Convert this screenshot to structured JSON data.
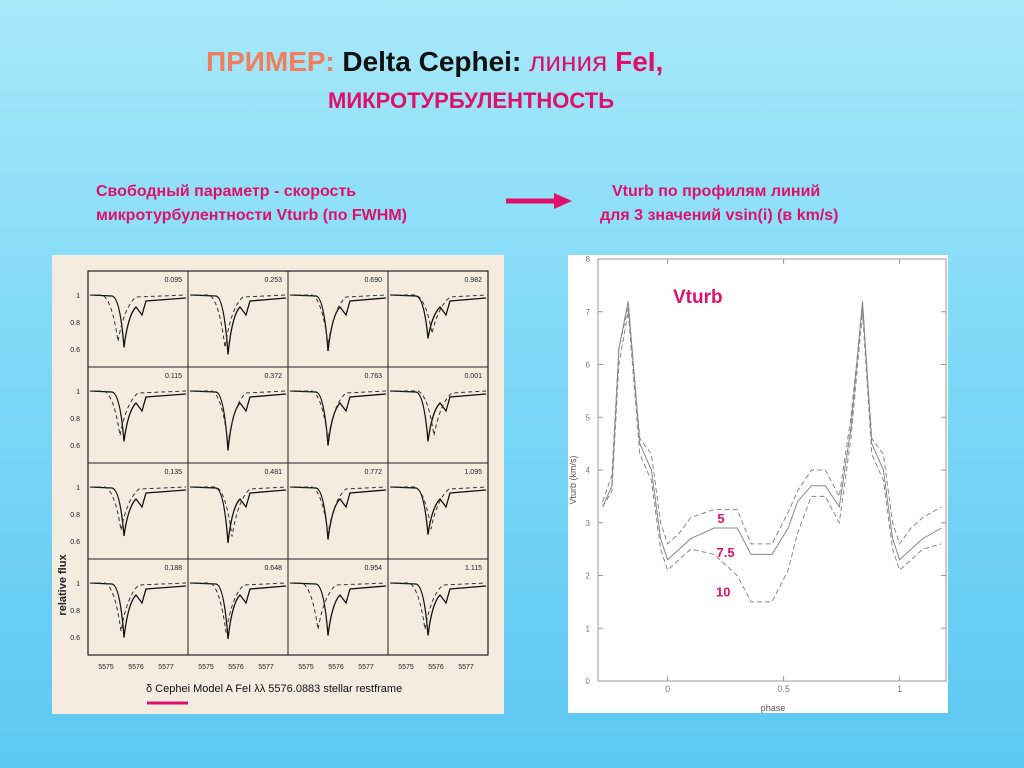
{
  "title": {
    "part1": "ПРИМЕР:",
    "part2": "Delta Cephei:",
    "part3": "линия",
    "part4": "FeI,",
    "line2": "МИКРОТУРБУЛЕНТНОСТЬ"
  },
  "left_text": {
    "line1": "Свободный параметр - скорость",
    "line2": "микротурбулентности Vturb (по FWHM)"
  },
  "right_text": {
    "line1": "Vturb по профилям линий",
    "line2": "для 3  значений  vsin(i) (в km/s)"
  },
  "left_figure": {
    "ylabel": "relative flux",
    "yticks": [
      "1",
      "0.8",
      "0.6"
    ],
    "phases": [
      [
        "0.095",
        "0.253",
        "0.690",
        "0.982"
      ],
      [
        "0.115",
        "0.372",
        "0.763",
        "0.001"
      ],
      [
        "0.135",
        "0.481",
        "0.772",
        "1.095"
      ],
      [
        "0.188",
        "0.648",
        "0.954",
        "1.115"
      ]
    ],
    "xticks": [
      "5575",
      "5576",
      "5577"
    ],
    "caption": "δ Cephei Model A  FeI λλ 5576.0883   stellar restframe"
  },
  "chart_data": {
    "type": "line",
    "title": "Vturb",
    "xlabel": "phase",
    "ylabel": "Vturb (km/s)",
    "xlim": [
      -0.3,
      1.2
    ],
    "ylim": [
      0,
      8
    ],
    "xticks": [
      "0",
      "0.5",
      "1"
    ],
    "yticks": [
      "0",
      "1",
      "2",
      "3",
      "4",
      "5",
      "6",
      "7",
      "8"
    ],
    "series": [
      {
        "name": "5",
        "style": "dashed",
        "x": [
          -0.28,
          -0.24,
          -0.21,
          -0.17,
          -0.12,
          -0.07,
          -0.03,
          0.0,
          0.05,
          0.1,
          0.2,
          0.3,
          0.36,
          0.45,
          0.52,
          0.56,
          0.62,
          0.68,
          0.74,
          0.79,
          0.84,
          0.88,
          0.93,
          0.97,
          1.0,
          1.05,
          1.1,
          1.18
        ],
        "y": [
          3.4,
          3.9,
          6.3,
          7.1,
          4.6,
          4.3,
          3.0,
          2.6,
          2.8,
          3.1,
          3.25,
          3.25,
          2.6,
          2.6,
          3.2,
          3.6,
          4.0,
          4.0,
          3.5,
          5.0,
          7.1,
          4.6,
          4.3,
          3.0,
          2.6,
          2.9,
          3.1,
          3.3
        ]
      },
      {
        "name": "7.5",
        "style": "solid",
        "x": [
          -0.28,
          -0.24,
          -0.21,
          -0.17,
          -0.12,
          -0.07,
          -0.03,
          0.0,
          0.05,
          0.1,
          0.2,
          0.3,
          0.36,
          0.45,
          0.52,
          0.56,
          0.62,
          0.68,
          0.74,
          0.79,
          0.84,
          0.88,
          0.93,
          0.97,
          1.0,
          1.05,
          1.1,
          1.18
        ],
        "y": [
          3.3,
          3.7,
          6.3,
          7.2,
          4.5,
          4.0,
          2.7,
          2.3,
          2.5,
          2.7,
          2.9,
          2.9,
          2.4,
          2.4,
          2.9,
          3.4,
          3.7,
          3.7,
          3.3,
          4.8,
          7.2,
          4.5,
          4.0,
          2.7,
          2.3,
          2.5,
          2.7,
          2.9
        ]
      },
      {
        "name": "10",
        "style": "dashed",
        "x": [
          -0.28,
          -0.24,
          -0.21,
          -0.17,
          -0.12,
          -0.07,
          -0.03,
          0.0,
          0.05,
          0.1,
          0.2,
          0.3,
          0.36,
          0.45,
          0.52,
          0.56,
          0.62,
          0.68,
          0.74,
          0.79,
          0.84,
          0.88,
          0.93,
          0.97,
          1.0,
          1.05,
          1.1,
          1.18
        ],
        "y": [
          3.3,
          3.6,
          6.0,
          7.0,
          4.3,
          3.8,
          2.5,
          2.1,
          2.3,
          2.5,
          2.4,
          2.0,
          1.5,
          1.5,
          2.1,
          2.8,
          3.5,
          3.5,
          3.0,
          4.6,
          7.0,
          4.3,
          3.8,
          2.5,
          2.1,
          2.3,
          2.5,
          2.6
        ]
      }
    ],
    "annotations": [
      "5",
      "7.5",
      "10"
    ]
  },
  "colors": {
    "accent_red": "#e0106a",
    "salmon": "#f07d5c",
    "plot_line": "#888888"
  }
}
